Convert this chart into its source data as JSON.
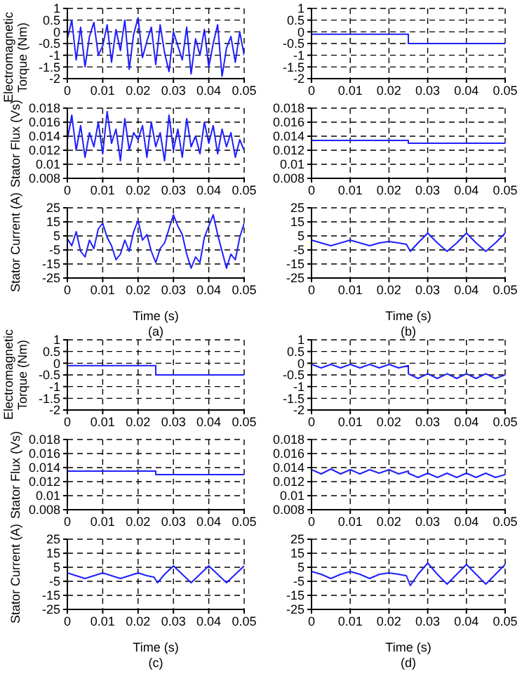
{
  "chart_data": [
    {
      "type": "line",
      "ylabel": "Electromagnetic Torque (Nm)",
      "xlim": [
        0,
        0.05
      ],
      "xticks": [
        0,
        0.01,
        0.02,
        0.03,
        0.04,
        0.05
      ],
      "ylim": [
        -2,
        1
      ],
      "yticks": [
        -2,
        -1.5,
        -1,
        -0.5,
        0,
        0.5,
        1
      ],
      "grid": true,
      "series": [
        {
          "color": "#1f1fff",
          "x": [
            0,
            0.00125,
            0.0025,
            0.00375,
            0.005,
            0.00625,
            0.0075,
            0.00875,
            0.01,
            0.01125,
            0.0125,
            0.01375,
            0.015,
            0.01625,
            0.0175,
            0.01875,
            0.02,
            0.02125,
            0.0225,
            0.02375,
            0.025,
            0.02625,
            0.0275,
            0.02875,
            0.03,
            0.03125,
            0.0325,
            0.03375,
            0.035,
            0.03625,
            0.0375,
            0.03875,
            0.04,
            0.04125,
            0.0425,
            0.04375,
            0.045,
            0.04625,
            0.0475,
            0.04875,
            0.05
          ],
          "values": [
            -0.3,
            0.5,
            -1.2,
            0.2,
            -1.5,
            -0.2,
            0.4,
            -1,
            -0.6,
            0.3,
            -1.3,
            0.1,
            -0.8,
            0.5,
            -1.6,
            -0.1,
            0.6,
            -1.1,
            -0.4,
            0.2,
            -1.4,
            0.3,
            -0.9,
            -1.7,
            0,
            -0.6,
            -1.2,
            0.2,
            -1.8,
            -0.3,
            -1,
            0.1,
            -1.5,
            -0.5,
            0.3,
            -1.9,
            -0.7,
            -0.2,
            -1.3,
            0,
            -1
          ]
        }
      ]
    },
    {
      "type": "line",
      "xlim": [
        0,
        0.05
      ],
      "xticks": [
        0,
        0.01,
        0.02,
        0.03,
        0.04,
        0.05
      ],
      "ylim": [
        -2,
        1
      ],
      "yticks": [
        -2,
        -1.5,
        -1,
        -0.5,
        0,
        0.5,
        1
      ],
      "grid": true,
      "series": [
        {
          "color": "#1f1fff",
          "x": [
            0,
            0.025,
            0.025,
            0.05
          ],
          "values": [
            -0.1,
            -0.1,
            -0.5,
            -0.5
          ]
        }
      ]
    },
    {
      "type": "line",
      "ylabel": "Stator Flux (Vs)",
      "xlim": [
        0,
        0.05
      ],
      "xticks": [
        0,
        0.01,
        0.02,
        0.03,
        0.04,
        0.05
      ],
      "ylim": [
        0.008,
        0.018
      ],
      "yticks": [
        0.008,
        0.01,
        0.012,
        0.014,
        0.016,
        0.018
      ],
      "grid": true,
      "series": [
        {
          "color": "#1f1fff",
          "x": [
            0,
            0.00125,
            0.0025,
            0.00375,
            0.005,
            0.00625,
            0.0075,
            0.00875,
            0.01,
            0.01125,
            0.0125,
            0.01375,
            0.015,
            0.01625,
            0.0175,
            0.01875,
            0.02,
            0.02125,
            0.0225,
            0.02375,
            0.025,
            0.02625,
            0.0275,
            0.02875,
            0.03,
            0.03125,
            0.0325,
            0.03375,
            0.035,
            0.03625,
            0.0375,
            0.03875,
            0.04,
            0.04125,
            0.0425,
            0.04375,
            0.045,
            0.04625,
            0.0475,
            0.04875,
            0.05
          ],
          "values": [
            0.0135,
            0.017,
            0.012,
            0.0155,
            0.011,
            0.0145,
            0.0125,
            0.016,
            0.0115,
            0.0175,
            0.013,
            0.015,
            0.0105,
            0.0165,
            0.012,
            0.0145,
            0.0135,
            0.0155,
            0.011,
            0.016,
            0.0125,
            0.0145,
            0.0105,
            0.017,
            0.012,
            0.015,
            0.011,
            0.0165,
            0.0125,
            0.014,
            0.0115,
            0.016,
            0.013,
            0.0155,
            0.0115,
            0.015,
            0.0125,
            0.0145,
            0.011,
            0.0135,
            0.012
          ]
        }
      ]
    },
    {
      "type": "line",
      "xlim": [
        0,
        0.05
      ],
      "xticks": [
        0,
        0.01,
        0.02,
        0.03,
        0.04,
        0.05
      ],
      "ylim": [
        0.008,
        0.018
      ],
      "yticks": [
        0.008,
        0.01,
        0.012,
        0.014,
        0.016,
        0.018
      ],
      "grid": true,
      "series": [
        {
          "color": "#1f1fff",
          "x": [
            0,
            0.025,
            0.025,
            0.05
          ],
          "values": [
            0.0134,
            0.0134,
            0.013,
            0.013
          ]
        }
      ]
    },
    {
      "type": "line",
      "ylabel": "Stator Current (A)",
      "xlabel": "Time (s)",
      "annotations": [
        "(a)"
      ],
      "xlim": [
        0,
        0.05
      ],
      "xticks": [
        0,
        0.01,
        0.02,
        0.03,
        0.04,
        0.05
      ],
      "ylim": [
        -25,
        25
      ],
      "yticks": [
        -25,
        -15,
        -5,
        5,
        15,
        25
      ],
      "grid": true,
      "series": [
        {
          "color": "#1f1fff",
          "x": [
            0,
            0.00125,
            0.0025,
            0.00375,
            0.005,
            0.00625,
            0.0075,
            0.00875,
            0.01,
            0.01125,
            0.0125,
            0.01375,
            0.015,
            0.01625,
            0.0175,
            0.01875,
            0.02,
            0.02125,
            0.0225,
            0.02375,
            0.025,
            0.02625,
            0.0275,
            0.02875,
            0.03,
            0.03125,
            0.0325,
            0.03375,
            0.035,
            0.03625,
            0.0375,
            0.03875,
            0.04,
            0.04125,
            0.0425,
            0.04375,
            0.045,
            0.04625,
            0.0475,
            0.04875,
            0.05
          ],
          "values": [
            3,
            -2,
            8,
            -6,
            -10,
            2,
            -4,
            10,
            14,
            4,
            -2,
            -12,
            -8,
            2,
            -6,
            8,
            16,
            2,
            6,
            -6,
            -14,
            -4,
            0,
            10,
            20,
            12,
            6,
            -8,
            -18,
            -10,
            -14,
            4,
            12,
            20,
            6,
            -6,
            -18,
            -8,
            -12,
            4,
            14
          ]
        }
      ]
    },
    {
      "type": "line",
      "xlabel": "Time (s)",
      "annotations": [
        "(b)"
      ],
      "xlim": [
        0,
        0.05
      ],
      "xticks": [
        0,
        0.01,
        0.02,
        0.03,
        0.04,
        0.05
      ],
      "ylim": [
        -25,
        25
      ],
      "yticks": [
        -25,
        -15,
        -5,
        5,
        15,
        25
      ],
      "grid": true,
      "series": [
        {
          "color": "#1f1fff",
          "x": [
            0,
            0.0025,
            0.005,
            0.0075,
            0.01,
            0.0125,
            0.015,
            0.0175,
            0.02,
            0.0225,
            0.0245,
            0.0255,
            0.0275,
            0.03,
            0.0325,
            0.035,
            0.0375,
            0.04,
            0.0425,
            0.045,
            0.0475,
            0.05
          ],
          "values": [
            2,
            0,
            -2,
            0,
            2,
            0,
            -2,
            0,
            1,
            0,
            -1,
            -6,
            0,
            7,
            0,
            -6,
            0,
            7,
            0,
            -6,
            0,
            7
          ]
        }
      ]
    },
    {
      "type": "line",
      "ylabel": "Electromagnetic Torque (Nm)",
      "xlim": [
        0,
        0.05
      ],
      "xticks": [
        0,
        0.01,
        0.02,
        0.03,
        0.04,
        0.05
      ],
      "ylim": [
        -2,
        1
      ],
      "yticks": [
        -2,
        -1.5,
        -1,
        -0.5,
        0,
        0.5,
        1
      ],
      "grid": true,
      "series": [
        {
          "color": "#1f1fff",
          "x": [
            0,
            0.025,
            0.025,
            0.05
          ],
          "values": [
            -0.1,
            -0.1,
            -0.5,
            -0.5
          ]
        }
      ]
    },
    {
      "type": "line",
      "xlim": [
        0,
        0.05
      ],
      "xticks": [
        0,
        0.01,
        0.02,
        0.03,
        0.04,
        0.05
      ],
      "ylim": [
        -2,
        1
      ],
      "yticks": [
        -2,
        -1.5,
        -1,
        -0.5,
        0,
        0.5,
        1
      ],
      "grid": true,
      "series": [
        {
          "color": "#1f1fff",
          "x": [
            0,
            0.0025,
            0.005,
            0.0075,
            0.01,
            0.0125,
            0.015,
            0.0175,
            0.02,
            0.0225,
            0.025,
            0.025,
            0.0275,
            0.03,
            0.0325,
            0.035,
            0.0375,
            0.04,
            0.0425,
            0.045,
            0.0475,
            0.05
          ],
          "values": [
            -0.05,
            -0.2,
            -0.05,
            -0.2,
            -0.05,
            -0.2,
            -0.05,
            -0.2,
            -0.05,
            -0.2,
            -0.1,
            -0.45,
            -0.65,
            -0.45,
            -0.65,
            -0.45,
            -0.65,
            -0.45,
            -0.65,
            -0.45,
            -0.65,
            -0.5
          ]
        }
      ]
    },
    {
      "type": "line",
      "ylabel": "Stator Flux (Vs)",
      "xlim": [
        0,
        0.05
      ],
      "xticks": [
        0,
        0.01,
        0.02,
        0.03,
        0.04,
        0.05
      ],
      "ylim": [
        0.008,
        0.018
      ],
      "yticks": [
        0.008,
        0.01,
        0.012,
        0.014,
        0.016,
        0.018
      ],
      "grid": true,
      "series": [
        {
          "color": "#1f1fff",
          "x": [
            0,
            0.025,
            0.025,
            0.05
          ],
          "values": [
            0.0135,
            0.0135,
            0.013,
            0.013
          ]
        }
      ]
    },
    {
      "type": "line",
      "xlim": [
        0,
        0.05
      ],
      "xticks": [
        0,
        0.01,
        0.02,
        0.03,
        0.04,
        0.05
      ],
      "ylim": [
        0.008,
        0.018
      ],
      "yticks": [
        0.008,
        0.01,
        0.012,
        0.014,
        0.016,
        0.018
      ],
      "grid": true,
      "series": [
        {
          "color": "#1f1fff",
          "x": [
            0,
            0.0025,
            0.005,
            0.0075,
            0.01,
            0.0125,
            0.015,
            0.0175,
            0.02,
            0.0225,
            0.025,
            0.025,
            0.0275,
            0.03,
            0.0325,
            0.035,
            0.0375,
            0.04,
            0.0425,
            0.045,
            0.0475,
            0.05
          ],
          "values": [
            0.0137,
            0.0131,
            0.0138,
            0.0131,
            0.0137,
            0.0131,
            0.0137,
            0.0132,
            0.0137,
            0.0131,
            0.0135,
            0.0132,
            0.0126,
            0.0132,
            0.0126,
            0.0132,
            0.0126,
            0.0132,
            0.0126,
            0.0132,
            0.0126,
            0.013
          ]
        }
      ]
    },
    {
      "type": "line",
      "ylabel": "Stator Current (A)",
      "xlabel": "Time (s)",
      "annotations": [
        "(c)"
      ],
      "xlim": [
        0,
        0.05
      ],
      "xticks": [
        0,
        0.01,
        0.02,
        0.03,
        0.04,
        0.05
      ],
      "ylim": [
        -25,
        25
      ],
      "yticks": [
        -25,
        -15,
        -5,
        5,
        15,
        25
      ],
      "grid": true,
      "series": [
        {
          "color": "#1f1fff",
          "x": [
            0,
            0.0025,
            0.005,
            0.0075,
            0.01,
            0.0125,
            0.015,
            0.0175,
            0.02,
            0.0225,
            0.0245,
            0.0255,
            0.0275,
            0.03,
            0.0325,
            0.035,
            0.0375,
            0.04,
            0.0425,
            0.045,
            0.0475,
            0.05
          ],
          "values": [
            1,
            -1,
            -3,
            -1,
            1,
            -1,
            -3,
            -1,
            1,
            -1,
            -2,
            -6,
            0,
            6,
            0,
            -6,
            0,
            6,
            0,
            -6,
            0,
            6
          ]
        }
      ]
    },
    {
      "type": "line",
      "xlabel": "Time (s)",
      "annotations": [
        "(d)"
      ],
      "xlim": [
        0,
        0.05
      ],
      "xticks": [
        0,
        0.01,
        0.02,
        0.03,
        0.04,
        0.05
      ],
      "ylim": [
        -25,
        25
      ],
      "yticks": [
        -25,
        -15,
        -5,
        5,
        15,
        25
      ],
      "grid": true,
      "series": [
        {
          "color": "#1f1fff",
          "x": [
            0,
            0.0025,
            0.005,
            0.0075,
            0.01,
            0.0125,
            0.015,
            0.0175,
            0.02,
            0.0225,
            0.0245,
            0.0255,
            0.0275,
            0.03,
            0.0325,
            0.035,
            0.0375,
            0.04,
            0.0425,
            0.045,
            0.0475,
            0.05
          ],
          "values": [
            2,
            0,
            -3,
            0,
            2,
            0,
            -3,
            0,
            1,
            0,
            -1,
            -8,
            0,
            8,
            0,
            -7,
            0,
            7,
            0,
            -7,
            0,
            7
          ]
        }
      ]
    }
  ]
}
